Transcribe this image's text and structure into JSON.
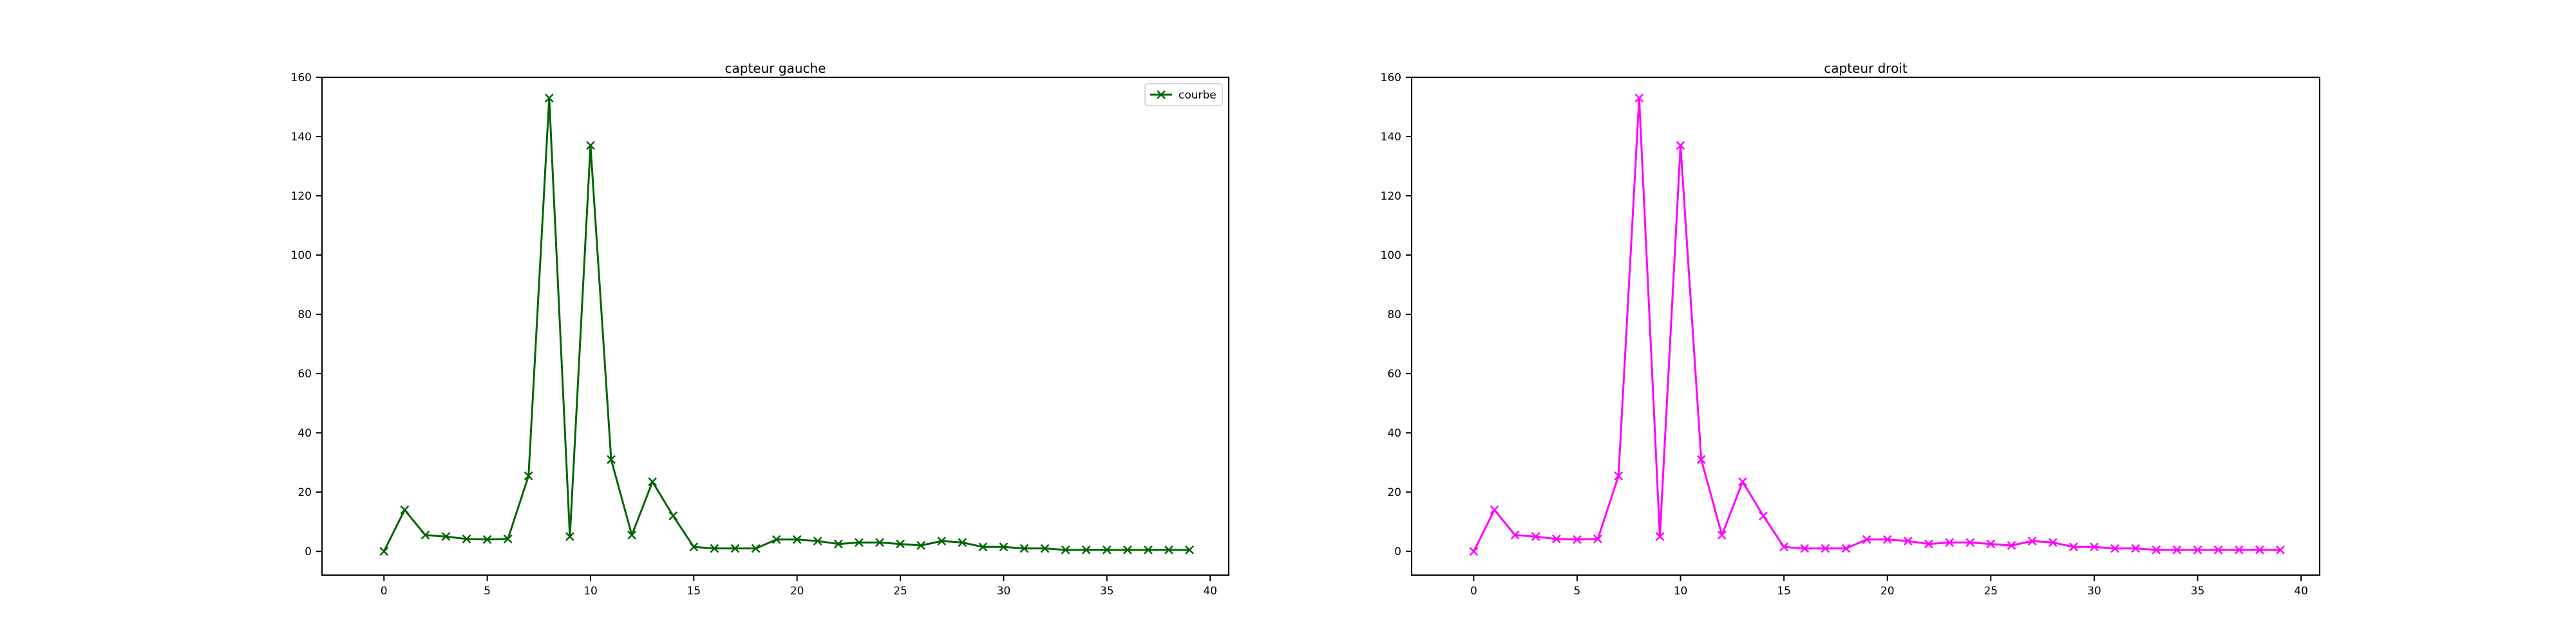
{
  "chart_data": [
    {
      "type": "line",
      "title": "capteur gauche",
      "xlabel": "",
      "ylabel": "",
      "xlim": [
        -3,
        40.9
      ],
      "ylim": [
        -8,
        160
      ],
      "xticks": [
        0,
        5,
        10,
        15,
        20,
        25,
        30,
        35,
        40
      ],
      "yticks": [
        0,
        20,
        40,
        60,
        80,
        100,
        120,
        140,
        160
      ],
      "grid": false,
      "legend": "top-right",
      "series": [
        {
          "name": "courbe",
          "color": "#006400",
          "marker": "x",
          "x": [
            0,
            1,
            2,
            3,
            4,
            5,
            6,
            7,
            8,
            9,
            10,
            11,
            12,
            13,
            14,
            15,
            16,
            17,
            18,
            19,
            20,
            21,
            22,
            23,
            24,
            25,
            26,
            27,
            28,
            29,
            30,
            31,
            32,
            33,
            34,
            35,
            36,
            37,
            38,
            39
          ],
          "y": [
            0,
            14,
            5.5,
            5,
            4.2,
            4,
            4.2,
            25.5,
            153,
            5,
            137,
            31,
            5.5,
            23.5,
            12,
            1.5,
            1,
            1,
            1,
            4,
            4,
            3.5,
            2.5,
            3,
            3,
            2.5,
            2,
            3.5,
            3,
            1.5,
            1.5,
            1,
            1,
            0.5,
            0.5,
            0.5,
            0.5,
            0.5,
            0.5,
            0.5
          ]
        }
      ]
    },
    {
      "type": "line",
      "title": "capteur droit",
      "xlabel": "",
      "ylabel": "",
      "xlim": [
        -3,
        40.9
      ],
      "ylim": [
        -8,
        160
      ],
      "xticks": [
        0,
        5,
        10,
        15,
        20,
        25,
        30,
        35,
        40
      ],
      "yticks": [
        0,
        20,
        40,
        60,
        80,
        100,
        120,
        140,
        160
      ],
      "grid": false,
      "legend": "none",
      "series": [
        {
          "color": "#ff00ff",
          "marker": "x",
          "x": [
            0,
            1,
            2,
            3,
            4,
            5,
            6,
            7,
            8,
            9,
            10,
            11,
            12,
            13,
            14,
            15,
            16,
            17,
            18,
            19,
            20,
            21,
            22,
            23,
            24,
            25,
            26,
            27,
            28,
            29,
            30,
            31,
            32,
            33,
            34,
            35,
            36,
            37,
            38,
            39
          ],
          "y": [
            0,
            14,
            5.5,
            5,
            4.2,
            4,
            4.2,
            25.5,
            153,
            5,
            137,
            31,
            5.5,
            23.5,
            12,
            1.5,
            1,
            1,
            1,
            4,
            4,
            3.5,
            2.5,
            3,
            3,
            2.5,
            2,
            3.5,
            3,
            1.5,
            1.5,
            1,
            1,
            0.5,
            0.5,
            0.5,
            0.5,
            0.5,
            0.5,
            0.5
          ]
        }
      ]
    }
  ]
}
